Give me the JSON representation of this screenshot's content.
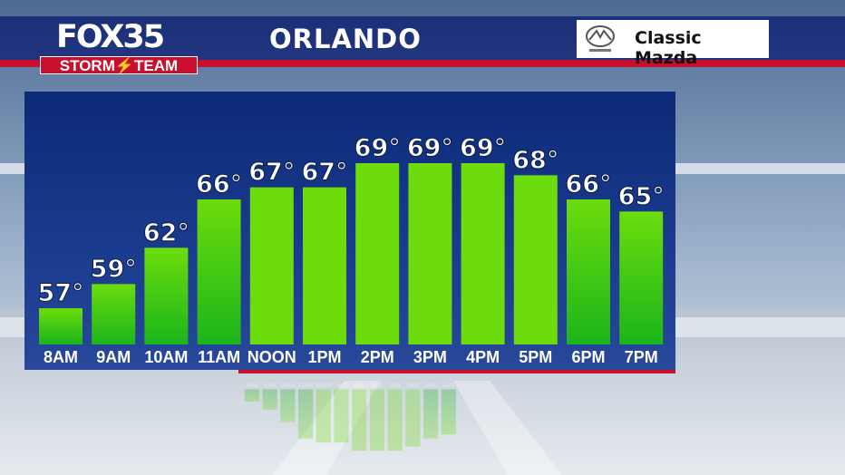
{
  "header": {
    "logo_brand": "FOX",
    "logo_number": "35",
    "logo_team": "STORM⚡TEAM",
    "title": "ORLANDO",
    "sponsor": "Classic Mazda"
  },
  "colors": {
    "header_blue": "#1c2f78",
    "accent_red": "#c8102e",
    "bar_light": "#6cdc0c",
    "bar_dark": "#1bb51b"
  },
  "chart_data": {
    "type": "bar",
    "categories": [
      "8AM",
      "9AM",
      "10AM",
      "11AM",
      "NOON",
      "1PM",
      "2PM",
      "3PM",
      "4PM",
      "5PM",
      "6PM",
      "7PM"
    ],
    "values": [
      57,
      59,
      62,
      66,
      67,
      67,
      69,
      69,
      69,
      68,
      66,
      65
    ],
    "data_labels": [
      "57°",
      "59°",
      "62°",
      "66°",
      "67°",
      "67°",
      "69°",
      "69°",
      "69°",
      "68°",
      "66°",
      "65°"
    ],
    "title": "ORLANDO",
    "xlabel": "",
    "ylabel": "",
    "ylim": [
      54,
      72
    ],
    "grid": false,
    "legend": "none"
  }
}
